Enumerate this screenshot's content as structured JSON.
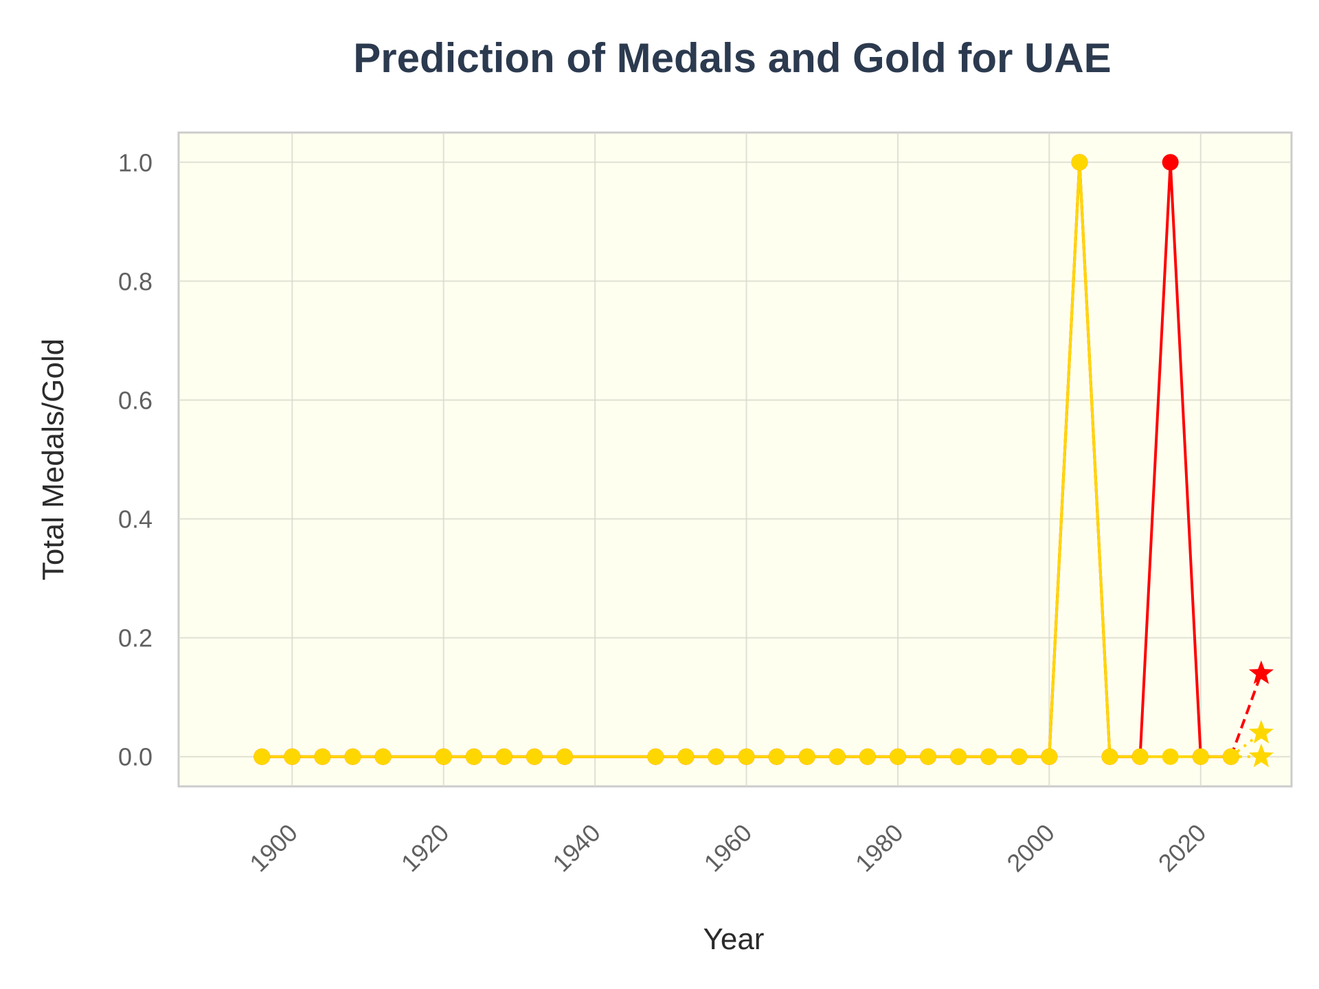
{
  "chart_data": {
    "type": "line",
    "title": "Prediction of Medals and Gold for UAE",
    "xlabel": "Year",
    "ylabel": "Total Medals/Gold",
    "xlim": [
      1885,
      2032
    ],
    "ylim": [
      -0.05,
      1.05
    ],
    "x_ticks": [
      1900,
      1920,
      1940,
      1960,
      1980,
      2000,
      2020
    ],
    "y_ticks": [
      0.0,
      0.2,
      0.4,
      0.6,
      0.8,
      1.0
    ],
    "y_tick_labels": [
      "0.0",
      "0.2",
      "0.4",
      "0.6",
      "0.8",
      "1.0"
    ],
    "grid": true,
    "background_color": "#fffff0",
    "series": [
      {
        "color": "#ff0000",
        "style": "solid",
        "marker": "circle",
        "x": [
          1896,
          1900,
          1904,
          1908,
          1912,
          1920,
          1924,
          1928,
          1932,
          1936,
          1948,
          1952,
          1956,
          1960,
          1964,
          1968,
          1972,
          1976,
          1980,
          1984,
          1988,
          1992,
          1996,
          2000,
          2004,
          2008,
          2012,
          2016,
          2020,
          2024
        ],
        "y": [
          0,
          0,
          0,
          0,
          0,
          0,
          0,
          0,
          0,
          0,
          0,
          0,
          0,
          0,
          0,
          0,
          0,
          0,
          0,
          0,
          0,
          0,
          0,
          0,
          1,
          0,
          0,
          1,
          0,
          0
        ]
      },
      {
        "color": "#ffd700",
        "style": "solid",
        "marker": "circle",
        "x": [
          1896,
          1900,
          1904,
          1908,
          1912,
          1920,
          1924,
          1928,
          1932,
          1936,
          1948,
          1952,
          1956,
          1960,
          1964,
          1968,
          1972,
          1976,
          1980,
          1984,
          1988,
          1992,
          1996,
          2000,
          2004,
          2008,
          2012,
          2016,
          2020,
          2024
        ],
        "y": [
          0,
          0,
          0,
          0,
          0,
          0,
          0,
          0,
          0,
          0,
          0,
          0,
          0,
          0,
          0,
          0,
          0,
          0,
          0,
          0,
          0,
          0,
          0,
          0,
          1,
          0,
          0,
          0,
          0,
          0
        ]
      }
    ],
    "predictions": [
      {
        "color": "#ff0000",
        "style": "dashed",
        "marker": "star",
        "x": [
          2024,
          2028
        ],
        "y": [
          0,
          0.14
        ]
      },
      {
        "color": "#ffd700",
        "style": "dotted",
        "marker": "star",
        "x": [
          2024,
          2028
        ],
        "y": [
          0,
          0.04
        ]
      },
      {
        "color": "#ffd700",
        "style": "dotted",
        "marker": "star",
        "x": [
          2024,
          2028
        ],
        "y": [
          0,
          0.0
        ]
      }
    ]
  }
}
